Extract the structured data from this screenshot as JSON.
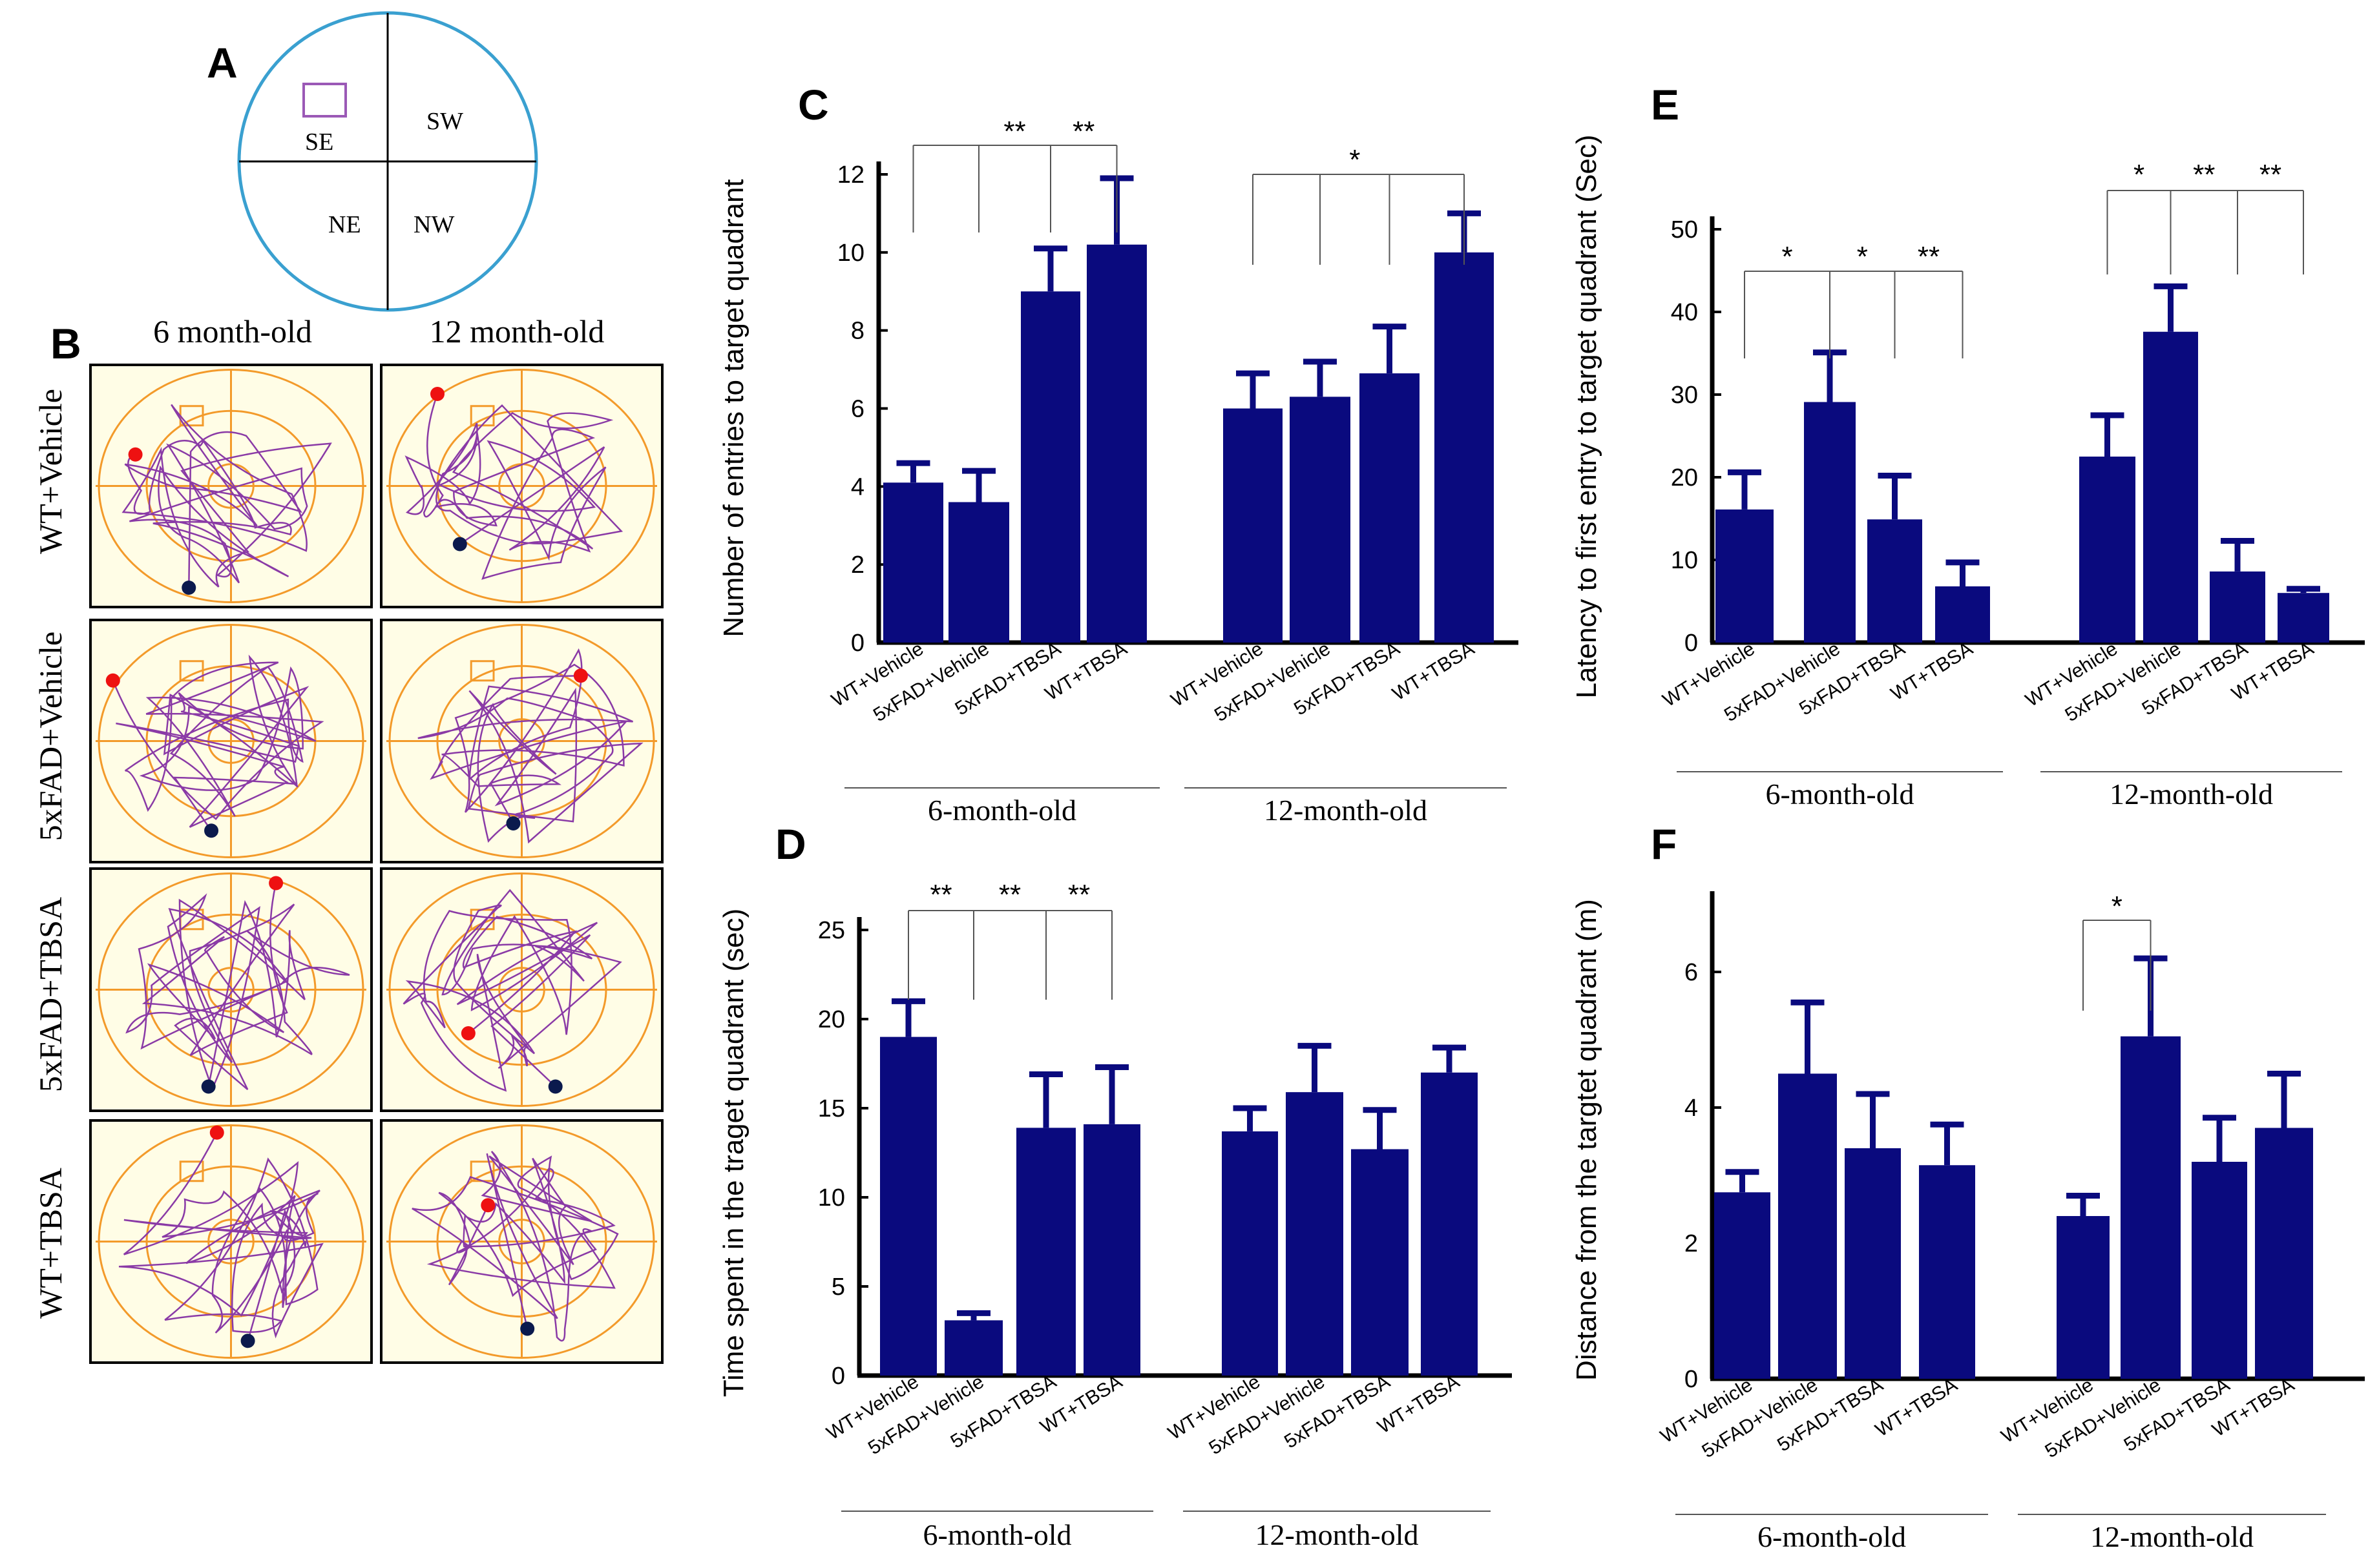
{
  "colors": {
    "bar": "#0a0a7e",
    "axis": "#000000",
    "arena_bg": "#fffde6",
    "arena_ring": "#f39a2a",
    "path": "#8a3aa6",
    "start_dot": "#ee1111",
    "end_dot": "#0b1a4d",
    "pool_outline": "#3aa0d0",
    "platform": "#9b59b6"
  },
  "panel_a": {
    "letter": "A",
    "quadrants": [
      "SE",
      "SW",
      "NE",
      "NW"
    ]
  },
  "panel_b": {
    "letter": "B",
    "columns": [
      "6 month-old",
      "12 month-old"
    ],
    "rows": [
      "WT+Vehicle",
      "5xFAD+Vehicle",
      "5xFAD+TBSA",
      "WT+TBSA"
    ]
  },
  "chart_data": [
    {
      "panel": "C",
      "type": "bar",
      "ylabel": "Number of entries to target quadrant",
      "ylim": [
        0,
        12
      ],
      "yticks": [
        0,
        2,
        4,
        6,
        8,
        10,
        12
      ],
      "groups": [
        {
          "label": "6-month-old",
          "categories": [
            "WT+Vehicle",
            "5xFAD+Vehicle",
            "5xFAD+TBSA",
            "WT+TBSA"
          ],
          "values": [
            4.1,
            3.6,
            9.0,
            10.2
          ],
          "errors": [
            0.5,
            0.8,
            1.1,
            1.7
          ]
        },
        {
          "label": "12-month-old",
          "categories": [
            "WT+Vehicle",
            "5xFAD+Vehicle",
            "5xFAD+TBSA",
            "WT+TBSA"
          ],
          "values": [
            6.0,
            6.3,
            6.9,
            10.0
          ],
          "errors": [
            0.9,
            0.9,
            1.2,
            1.0
          ]
        }
      ],
      "significance": [
        {
          "group": 0,
          "from": 0,
          "to": [
            1,
            2,
            3
          ],
          "marks": [
            "",
            "**",
            "**"
          ]
        },
        {
          "group": 1,
          "from": 0,
          "to": [
            1,
            2,
            3
          ],
          "marks": [
            "",
            "*",
            ""
          ]
        }
      ]
    },
    {
      "panel": "D",
      "type": "bar",
      "ylabel": "Time spent in the traget quadrant (sec)",
      "ylim": [
        0,
        25
      ],
      "yticks": [
        0,
        5,
        10,
        15,
        20,
        25
      ],
      "groups": [
        {
          "label": "6-month-old",
          "categories": [
            "WT+Vehicle",
            "5xFAD+Vehicle",
            "5xFAD+TBSA",
            "WT+TBSA"
          ],
          "values": [
            19.0,
            3.1,
            13.9,
            14.1
          ],
          "errors": [
            2.0,
            0.4,
            3.0,
            3.2
          ]
        },
        {
          "label": "12-month-old",
          "categories": [
            "WT+Vehicle",
            "5xFAD+Vehicle",
            "5xFAD+TBSA",
            "WT+TBSA"
          ],
          "values": [
            13.7,
            15.9,
            12.7,
            17.0
          ],
          "errors": [
            1.3,
            2.6,
            2.2,
            1.4
          ]
        }
      ],
      "significance": [
        {
          "group": 0,
          "from": 0,
          "to": [
            1,
            2,
            3
          ],
          "marks": [
            "**",
            "**",
            "**"
          ]
        }
      ]
    },
    {
      "panel": "E",
      "type": "bar",
      "ylabel": "Latency to first entry to target quadrant (Sec)",
      "ylim": [
        0,
        50
      ],
      "yticks": [
        0,
        10,
        20,
        30,
        40,
        50
      ],
      "groups": [
        {
          "label": "6-month-old",
          "categories": [
            "WT+Vehicle",
            "5xFAD+Vehicle",
            "5xFAD+TBSA",
            "WT+TBSA"
          ],
          "values": [
            16.1,
            29.1,
            14.9,
            6.8
          ],
          "errors": [
            4.5,
            6.0,
            5.3,
            2.9
          ]
        },
        {
          "label": "12-month-old",
          "categories": [
            "WT+Vehicle",
            "5xFAD+Vehicle",
            "5xFAD+TBSA",
            "WT+TBSA"
          ],
          "values": [
            22.5,
            37.6,
            8.6,
            6.0
          ],
          "errors": [
            5.0,
            5.5,
            3.7,
            0.5
          ]
        }
      ],
      "significance": [
        {
          "group": 0,
          "from": 1,
          "to": [
            0,
            2,
            3
          ],
          "marks": [
            "*",
            "*",
            "**"
          ]
        },
        {
          "group": 1,
          "from": 1,
          "to": [
            0,
            2,
            3
          ],
          "marks": [
            "*",
            "**",
            "**"
          ]
        }
      ]
    },
    {
      "panel": "F",
      "type": "bar",
      "ylabel": "Distance from the targtet quadrant (m)",
      "ylim": [
        0,
        7
      ],
      "yticks": [
        0,
        2,
        4,
        6
      ],
      "groups": [
        {
          "label": "6-month-old",
          "categories": [
            "WT+Vehicle",
            "5xFAD+Vehicle",
            "5xFAD+TBSA",
            "WT+TBSA"
          ],
          "values": [
            2.75,
            4.5,
            3.4,
            3.15
          ],
          "errors": [
            0.3,
            1.05,
            0.8,
            0.6
          ]
        },
        {
          "label": "12-month-old",
          "categories": [
            "WT+Vehicle",
            "5xFAD+Vehicle",
            "5xFAD+TBSA",
            "WT+TBSA"
          ],
          "values": [
            2.4,
            5.05,
            3.2,
            3.7
          ],
          "errors": [
            0.3,
            1.15,
            0.65,
            0.8
          ]
        }
      ],
      "significance": [
        {
          "group": 1,
          "from": 0,
          "to": [
            1
          ],
          "marks": [
            "*"
          ]
        }
      ]
    }
  ]
}
